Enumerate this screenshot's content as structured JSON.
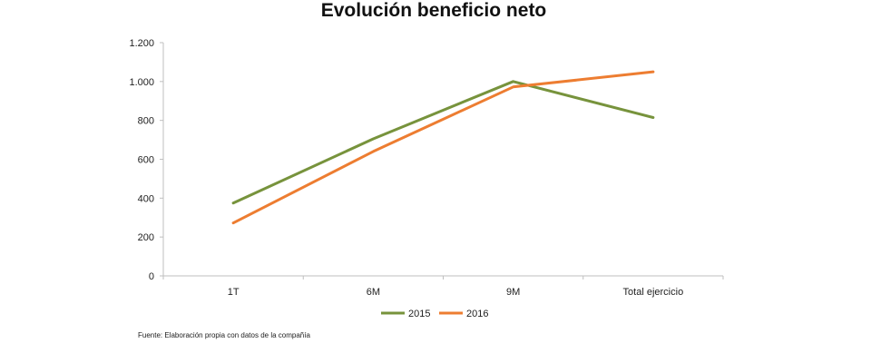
{
  "chart_data": {
    "type": "line",
    "title": "Evolución beneficio neto",
    "categories": [
      "1T",
      "6M",
      "9M",
      "Total ejercicio"
    ],
    "series": [
      {
        "name": "2015",
        "values": [
          375,
          705,
          1000,
          815
        ],
        "color": "#77933c"
      },
      {
        "name": "2016",
        "values": [
          272,
          640,
          972,
          1050
        ],
        "color": "#ed7d31"
      }
    ],
    "ylim": [
      0,
      1200
    ],
    "yticks": [
      0,
      200,
      400,
      600,
      800,
      1000,
      1200
    ],
    "ytick_labels": [
      "0",
      "200",
      "400",
      "600",
      "800",
      "1.000",
      "1.200"
    ],
    "xlabel": "",
    "ylabel": "",
    "grid": false,
    "legend_position": "bottom",
    "axis_color": "#bfbfbf"
  },
  "source_note": "Fuente: Elaboración propia con datos de la compañía"
}
